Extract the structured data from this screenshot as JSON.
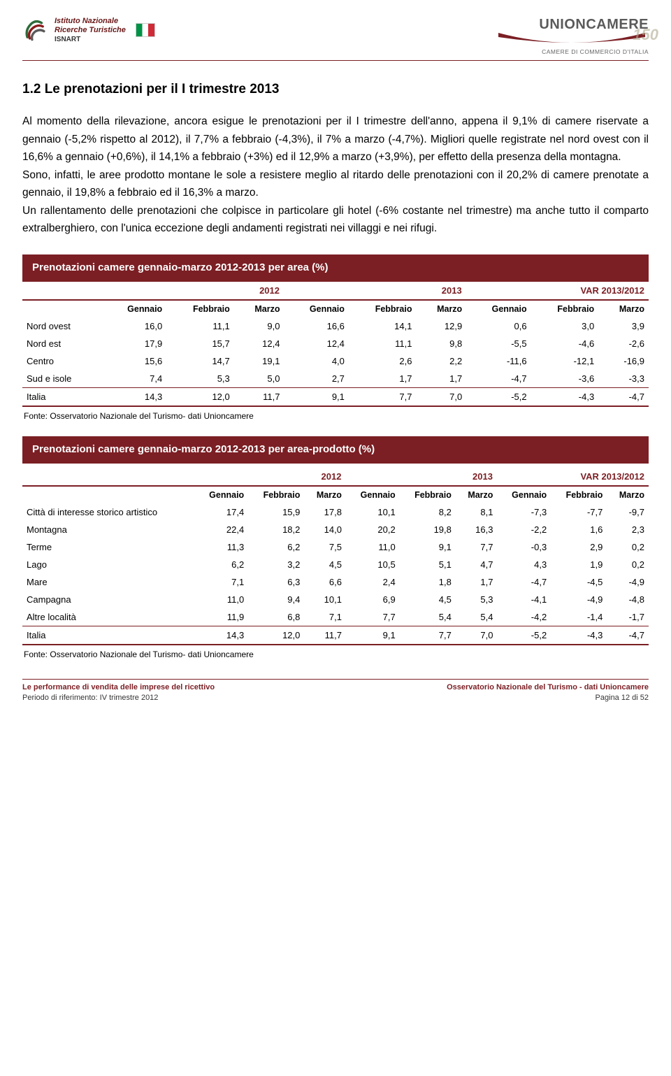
{
  "header": {
    "isnart_line1": "Istituto Nazionale",
    "isnart_line2": "Ricerche Turistiche",
    "isnart_label": "ISNART",
    "unioncamere": "UNIONCAMERE",
    "unioncamere_sub": "CAMERE DI COMMERCIO D'ITALIA",
    "anniversary": "150"
  },
  "section_title": "1.2 Le prenotazioni per il I trimestre 2013",
  "paragraphs": [
    "Al momento della rilevazione, ancora esigue le prenotazioni per il I trimestre dell'anno, appena il 9,1% di camere riservate a gennaio (-5,2% rispetto al 2012), il 7,7% a febbraio (-4,3%), il 7% a marzo (-4,7%). Migliori quelle registrate nel nord ovest con il 16,6% a gennaio (+0,6%), il 14,1% a febbraio (+3%) ed il 12,9% a marzo (+3,9%), per effetto della presenza della montagna.",
    "Sono, infatti, le aree prodotto montane le sole a resistere meglio al ritardo delle prenotazioni con il 20,2% di camere prenotate a gennaio, il 19,8% a febbraio ed il 16,3% a marzo.",
    "Un rallentamento delle prenotazioni che colpisce in particolare gli hotel (-6% costante nel trimestre) ma anche tutto il comparto extralberghiero, con l'unica eccezione degli andamenti registrati nei villaggi e nei rifugi."
  ],
  "table1": {
    "title": "Prenotazioni camere gennaio-marzo 2012-2013 per area (%)",
    "group_headers": [
      "2012",
      "2013",
      "VAR 2013/2012"
    ],
    "sub_headers": [
      "Gennaio",
      "Febbraio",
      "Marzo",
      "Gennaio",
      "Febbraio",
      "Marzo",
      "Gennaio",
      "Febbraio",
      "Marzo"
    ],
    "rows": [
      {
        "label": "Nord ovest",
        "cells": [
          "16,0",
          "11,1",
          "9,0",
          "16,6",
          "14,1",
          "12,9",
          "0,6",
          "3,0",
          "3,9"
        ]
      },
      {
        "label": "Nord est",
        "cells": [
          "17,9",
          "15,7",
          "12,4",
          "12,4",
          "11,1",
          "9,8",
          "-5,5",
          "-4,6",
          "-2,6"
        ]
      },
      {
        "label": "Centro",
        "cells": [
          "15,6",
          "14,7",
          "19,1",
          "4,0",
          "2,6",
          "2,2",
          "-11,6",
          "-12,1",
          "-16,9"
        ]
      },
      {
        "label": "Sud e isole",
        "cells": [
          "7,4",
          "5,3",
          "5,0",
          "2,7",
          "1,7",
          "1,7",
          "-4,7",
          "-3,6",
          "-3,3"
        ]
      },
      {
        "label": "Italia",
        "cells": [
          "14,3",
          "12,0",
          "11,7",
          "9,1",
          "7,7",
          "7,0",
          "-5,2",
          "-4,3",
          "-4,7"
        ]
      }
    ],
    "source": "Fonte: Osservatorio Nazionale del Turismo- dati Unioncamere"
  },
  "table2": {
    "title": "Prenotazioni camere gennaio-marzo 2012-2013 per area-prodotto (%)",
    "group_headers": [
      "2012",
      "2013",
      "VAR 2013/2012"
    ],
    "sub_headers": [
      "Gennaio",
      "Febbraio",
      "Marzo",
      "Gennaio",
      "Febbraio",
      "Marzo",
      "Gennaio",
      "Febbraio",
      "Marzo"
    ],
    "rows": [
      {
        "label": "Città di interesse storico artistico",
        "cells": [
          "17,4",
          "15,9",
          "17,8",
          "10,1",
          "8,2",
          "8,1",
          "-7,3",
          "-7,7",
          "-9,7"
        ]
      },
      {
        "label": "Montagna",
        "cells": [
          "22,4",
          "18,2",
          "14,0",
          "20,2",
          "19,8",
          "16,3",
          "-2,2",
          "1,6",
          "2,3"
        ]
      },
      {
        "label": "Terme",
        "cells": [
          "11,3",
          "6,2",
          "7,5",
          "11,0",
          "9,1",
          "7,7",
          "-0,3",
          "2,9",
          "0,2"
        ]
      },
      {
        "label": "Lago",
        "cells": [
          "6,2",
          "3,2",
          "4,5",
          "10,5",
          "5,1",
          "4,7",
          "4,3",
          "1,9",
          "0,2"
        ]
      },
      {
        "label": "Mare",
        "cells": [
          "7,1",
          "6,3",
          "6,6",
          "2,4",
          "1,8",
          "1,7",
          "-4,7",
          "-4,5",
          "-4,9"
        ]
      },
      {
        "label": "Campagna",
        "cells": [
          "11,0",
          "9,4",
          "10,1",
          "6,9",
          "4,5",
          "5,3",
          "-4,1",
          "-4,9",
          "-4,8"
        ]
      },
      {
        "label": "Altre località",
        "cells": [
          "11,9",
          "6,8",
          "7,1",
          "7,7",
          "5,4",
          "5,4",
          "-4,2",
          "-1,4",
          "-1,7"
        ]
      },
      {
        "label": "Italia",
        "cells": [
          "14,3",
          "12,0",
          "11,7",
          "9,1",
          "7,7",
          "7,0",
          "-5,2",
          "-4,3",
          "-4,7"
        ]
      }
    ],
    "source": "Fonte: Osservatorio Nazionale del Turismo- dati Unioncamere"
  },
  "footer": {
    "left_title": "Le performance di vendita delle imprese del ricettivo",
    "left_sub": "Periodo di riferimento: IV trimestre 2012",
    "right_title": "Osservatorio Nazionale del Turismo - dati Unioncamere",
    "right_sub": "Pagina 12 di 52"
  },
  "colors": {
    "brand": "#7b1f24",
    "text": "#000000",
    "bg": "#ffffff"
  }
}
